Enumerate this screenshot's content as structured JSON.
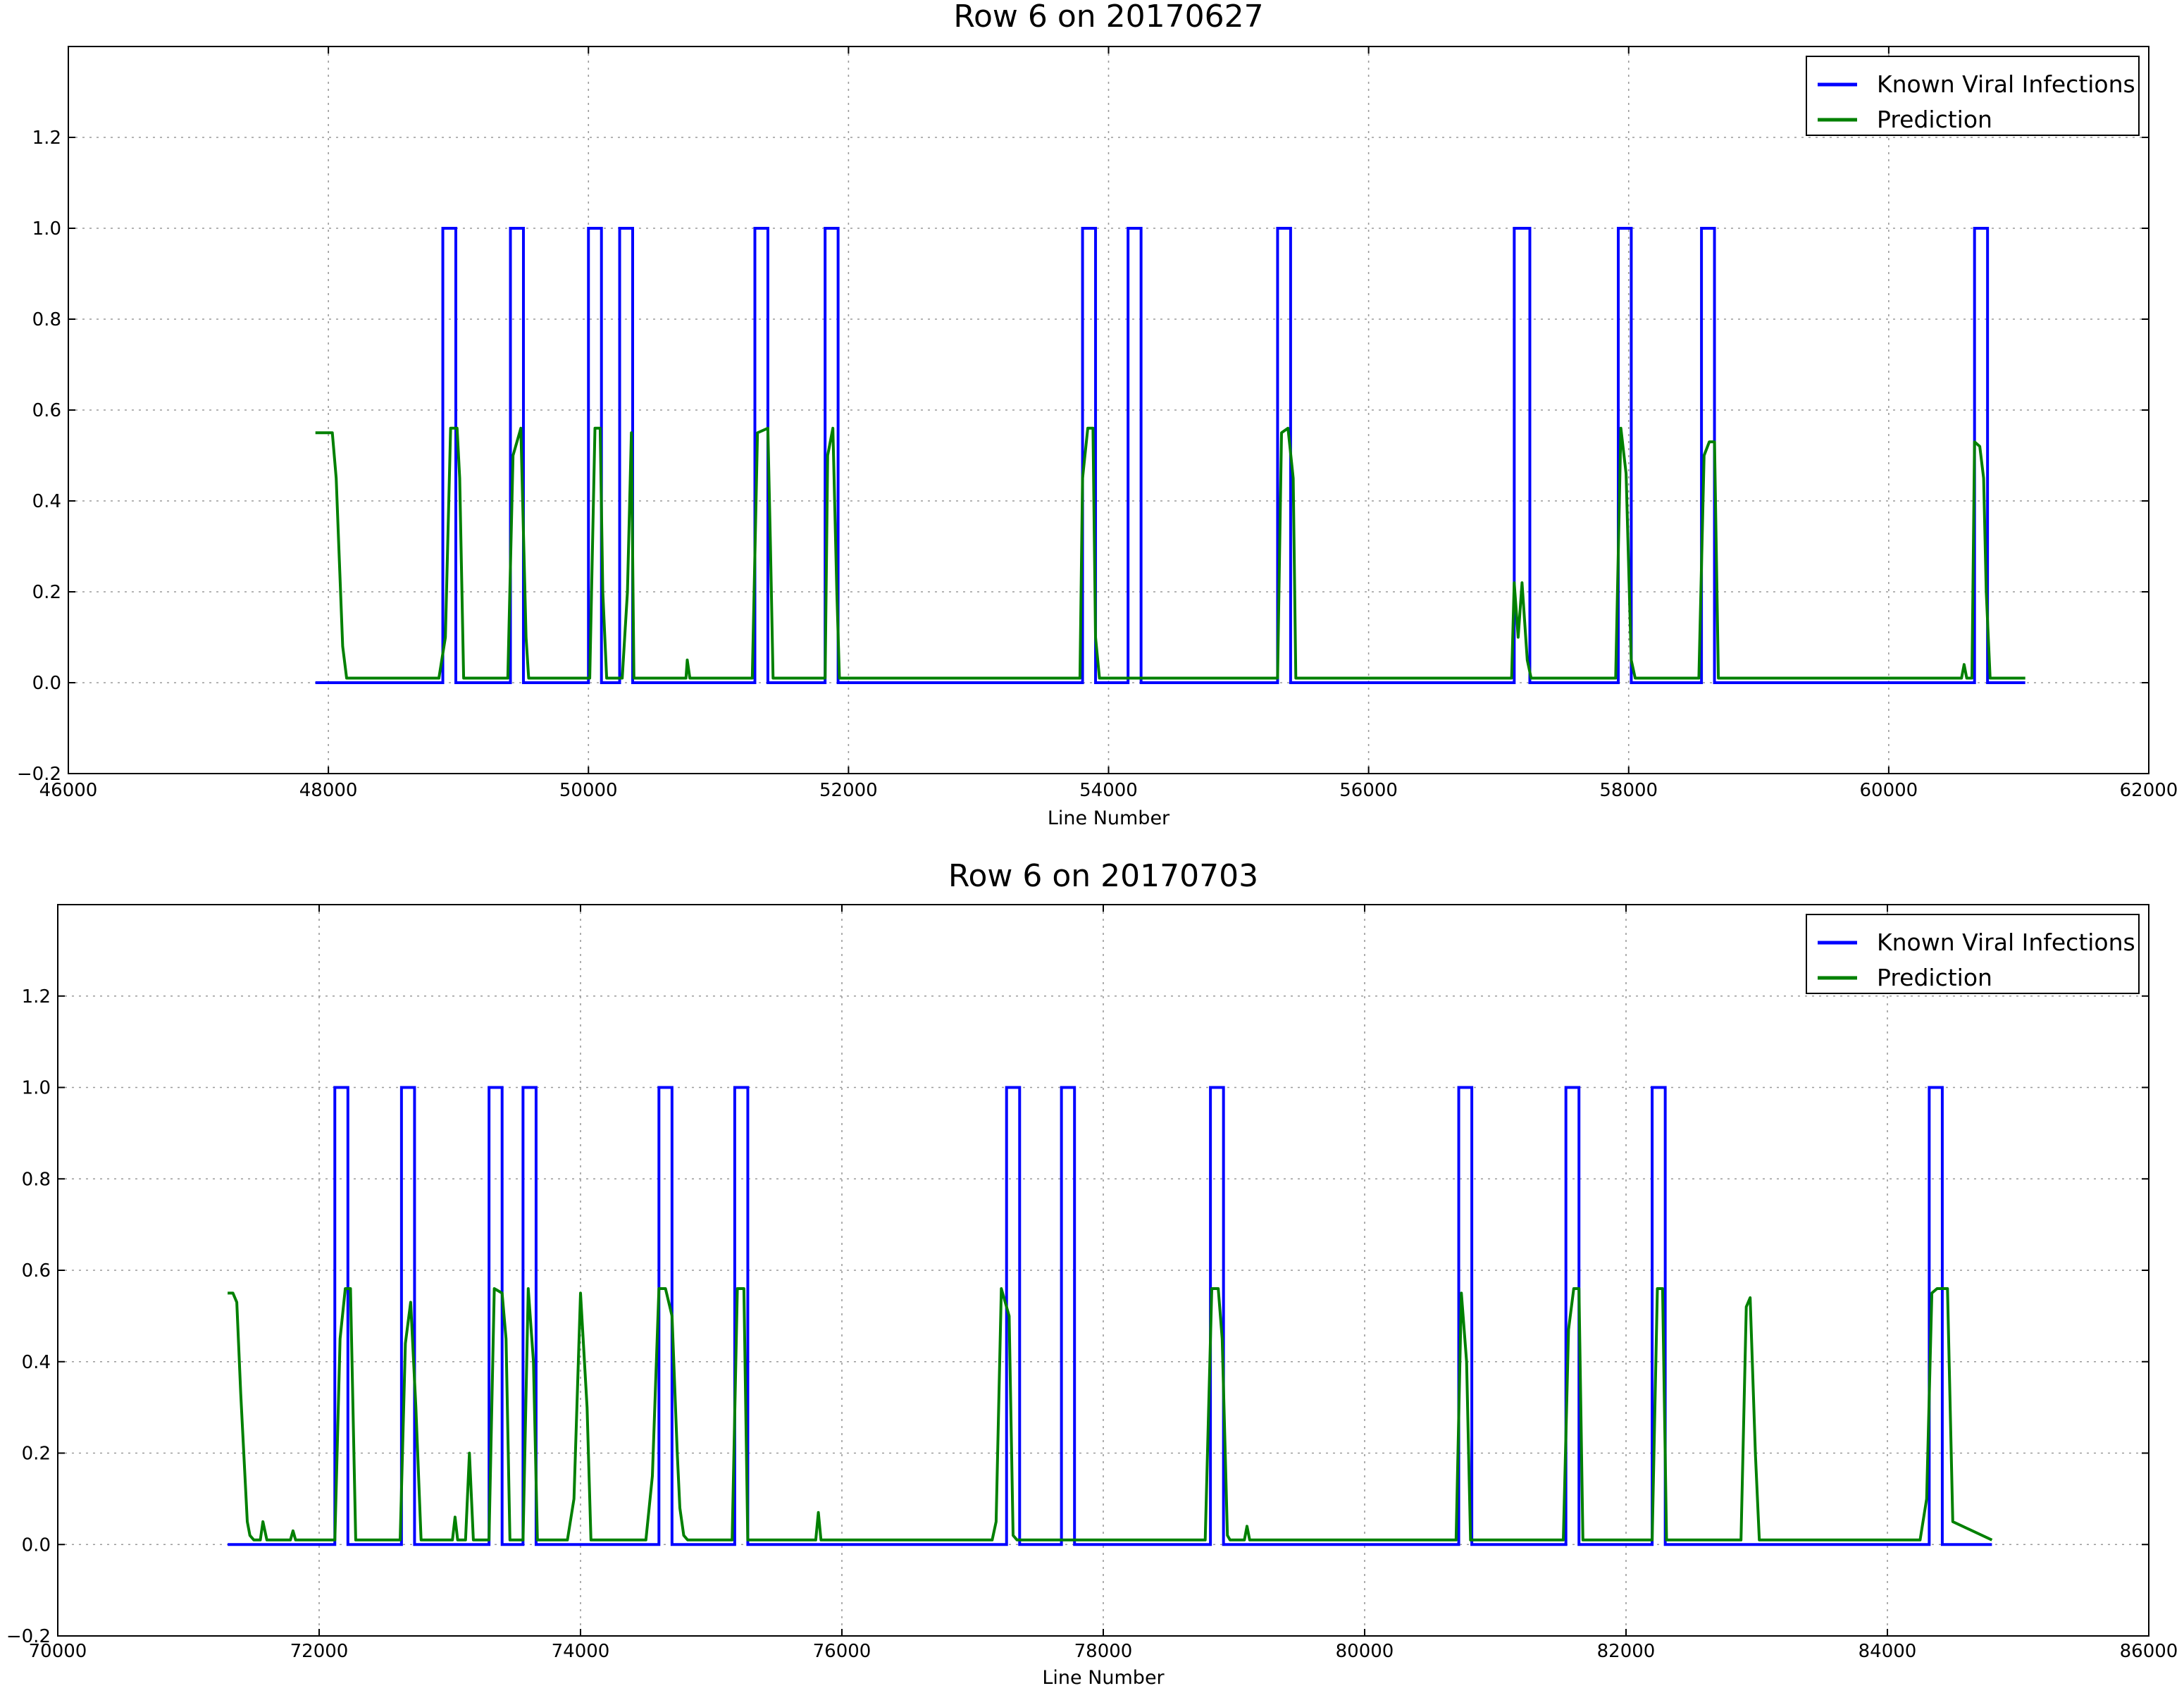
{
  "colors": {
    "known": "#0000ff",
    "prediction": "#008000"
  },
  "chart_data": [
    {
      "type": "line",
      "title": "Row 6 on 20170627",
      "xlabel": "Line Number",
      "ylabel": "",
      "xlim": [
        46000,
        62000
      ],
      "ylim": [
        -0.2,
        1.4
      ],
      "xticks": [
        46000,
        48000,
        50000,
        52000,
        54000,
        56000,
        58000,
        60000,
        62000
      ],
      "xtick_labels": [
        "46000",
        "48000",
        "50000",
        "52000",
        "54000",
        "56000",
        "58000",
        "60000",
        "62000"
      ],
      "yticks": [
        -0.2,
        0.0,
        0.2,
        0.4,
        0.6,
        0.8,
        1.0,
        1.2
      ],
      "ytick_labels": [
        "−0.2",
        "0.0",
        "0.2",
        "0.4",
        "0.6",
        "0.8",
        "1.0",
        "1.2"
      ],
      "grid": true,
      "legend_position": "top-right",
      "series": [
        {
          "name": "Known Viral Infections",
          "x_start": 47900,
          "x_end": 61050,
          "pulses": [
            [
              48880,
              48980
            ],
            [
              49400,
              49500
            ],
            [
              50000,
              50100
            ],
            [
              50240,
              50340
            ],
            [
              51280,
              51380
            ],
            [
              51820,
              51920
            ],
            [
              53800,
              53900
            ],
            [
              54150,
              54250
            ],
            [
              55300,
              55400
            ],
            [
              57120,
              57240
            ],
            [
              57920,
              58020
            ],
            [
              58560,
              58660
            ],
            [
              60660,
              60760
            ]
          ]
        },
        {
          "name": "Prediction",
          "x": [
            47900,
            47950,
            48000,
            48030,
            48060,
            48080,
            48110,
            48140,
            48200,
            48850,
            48900,
            48940,
            48990,
            49010,
            49040,
            49380,
            49420,
            49480,
            49520,
            49540,
            50010,
            50050,
            50090,
            50110,
            50140,
            50260,
            50300,
            50330,
            50350,
            50750,
            50760,
            50780,
            51260,
            51300,
            51380,
            51400,
            51420,
            51820,
            51840,
            51880,
            51910,
            51930,
            53780,
            53800,
            53840,
            53880,
            53900,
            53930,
            55300,
            55330,
            55380,
            55420,
            55440,
            57100,
            57120,
            57150,
            57180,
            57220,
            57250,
            57900,
            57940,
            57980,
            58020,
            58050,
            58540,
            58580,
            58620,
            58660,
            58690,
            60560,
            60580,
            60600,
            60640,
            60660,
            60700,
            60730,
            60750,
            60780,
            61050
          ],
          "y": [
            0.55,
            0.55,
            0.55,
            0.55,
            0.45,
            0.3,
            0.08,
            0.01,
            0.01,
            0.01,
            0.1,
            0.56,
            0.56,
            0.45,
            0.01,
            0.01,
            0.5,
            0.56,
            0.1,
            0.01,
            0.01,
            0.56,
            0.56,
            0.2,
            0.01,
            0.01,
            0.2,
            0.55,
            0.01,
            0.01,
            0.05,
            0.01,
            0.01,
            0.55,
            0.56,
            0.3,
            0.01,
            0.01,
            0.5,
            0.56,
            0.2,
            0.01,
            0.01,
            0.45,
            0.56,
            0.56,
            0.1,
            0.01,
            0.01,
            0.55,
            0.56,
            0.45,
            0.01,
            0.01,
            0.22,
            0.1,
            0.22,
            0.05,
            0.01,
            0.01,
            0.56,
            0.46,
            0.05,
            0.01,
            0.01,
            0.5,
            0.53,
            0.53,
            0.01,
            0.01,
            0.04,
            0.01,
            0.01,
            0.53,
            0.52,
            0.45,
            0.2,
            0.01,
            0.01
          ]
        }
      ]
    },
    {
      "type": "line",
      "title": "Row 6 on 20170703",
      "xlabel": "Line Number",
      "ylabel": "",
      "xlim": [
        70000,
        86000
      ],
      "ylim": [
        -0.2,
        1.4
      ],
      "xticks": [
        70000,
        72000,
        74000,
        76000,
        78000,
        80000,
        82000,
        84000,
        86000
      ],
      "xtick_labels": [
        "70000",
        "72000",
        "74000",
        "76000",
        "78000",
        "80000",
        "82000",
        "84000",
        "86000"
      ],
      "yticks": [
        -0.2,
        0.0,
        0.2,
        0.4,
        0.6,
        0.8,
        1.0,
        1.2
      ],
      "ytick_labels": [
        "−0.2",
        "0.0",
        "0.2",
        "0.4",
        "0.6",
        "0.8",
        "1.0",
        "1.2"
      ],
      "grid": true,
      "legend_position": "top-right",
      "series": [
        {
          "name": "Known Viral Infections",
          "x_start": 71300,
          "x_end": 84800,
          "pulses": [
            [
              72120,
              72220
            ],
            [
              72630,
              72730
            ],
            [
              73300,
              73400
            ],
            [
              73560,
              73660
            ],
            [
              74600,
              74700
            ],
            [
              75180,
              75280
            ],
            [
              77260,
              77360
            ],
            [
              77680,
              77780
            ],
            [
              78820,
              78920
            ],
            [
              80720,
              80820
            ],
            [
              81540,
              81640
            ],
            [
              82200,
              82300
            ],
            [
              84320,
              84420
            ]
          ]
        },
        {
          "name": "Prediction",
          "x": [
            71300,
            71340,
            71370,
            71400,
            71450,
            71470,
            71500,
            71550,
            71570,
            71600,
            71780,
            71800,
            71820,
            72120,
            72160,
            72200,
            72240,
            72280,
            72620,
            72660,
            72700,
            72740,
            72780,
            73020,
            73040,
            73060,
            73120,
            73150,
            73180,
            73300,
            73340,
            73400,
            73430,
            73460,
            73560,
            73600,
            73640,
            73670,
            73900,
            73950,
            74000,
            74050,
            74080,
            74500,
            74550,
            74600,
            74650,
            74700,
            74740,
            74760,
            74790,
            74820,
            75160,
            75200,
            75250,
            75280,
            75800,
            75820,
            75840,
            77150,
            77180,
            77220,
            77280,
            77310,
            77340,
            78780,
            78830,
            78880,
            78910,
            78950,
            78970,
            79080,
            79100,
            79120,
            80700,
            80740,
            80780,
            80810,
            81520,
            81560,
            81600,
            81640,
            81670,
            82200,
            82240,
            82280,
            82310,
            82880,
            82920,
            82950,
            82990,
            83020,
            84250,
            84300,
            84340,
            84380,
            84420,
            84460,
            84500,
            84800
          ],
          "y": [
            0.55,
            0.55,
            0.53,
            0.33,
            0.05,
            0.02,
            0.01,
            0.01,
            0.05,
            0.01,
            0.01,
            0.03,
            0.01,
            0.01,
            0.45,
            0.56,
            0.56,
            0.01,
            0.01,
            0.44,
            0.53,
            0.3,
            0.01,
            0.01,
            0.06,
            0.01,
            0.01,
            0.2,
            0.01,
            0.01,
            0.56,
            0.55,
            0.45,
            0.01,
            0.01,
            0.56,
            0.4,
            0.01,
            0.01,
            0.1,
            0.55,
            0.3,
            0.01,
            0.01,
            0.15,
            0.56,
            0.56,
            0.5,
            0.2,
            0.08,
            0.02,
            0.01,
            0.01,
            0.56,
            0.56,
            0.01,
            0.01,
            0.07,
            0.01,
            0.01,
            0.05,
            0.56,
            0.5,
            0.02,
            0.01,
            0.01,
            0.56,
            0.56,
            0.45,
            0.02,
            0.01,
            0.01,
            0.04,
            0.01,
            0.01,
            0.55,
            0.4,
            0.01,
            0.01,
            0.47,
            0.56,
            0.56,
            0.01,
            0.01,
            0.56,
            0.56,
            0.01,
            0.01,
            0.52,
            0.54,
            0.2,
            0.01,
            0.01,
            0.1,
            0.55,
            0.56,
            0.56,
            0.56,
            0.05,
            0.01
          ]
        }
      ]
    }
  ]
}
